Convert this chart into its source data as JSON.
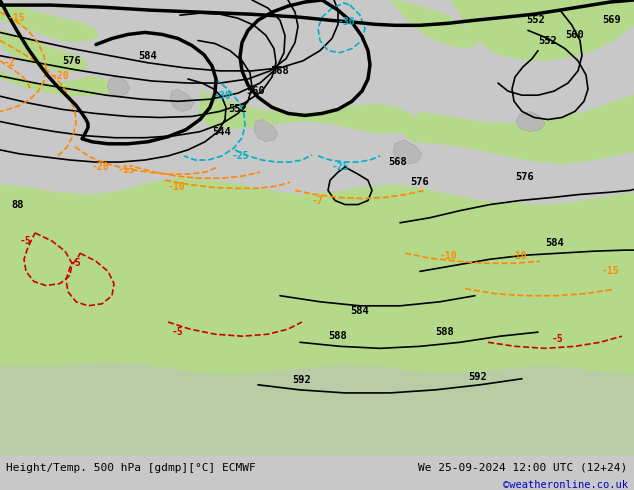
{
  "title_left": "Height/Temp. 500 hPa [gdmp][°C] ECMWF",
  "title_right": "We 25-09-2024 12:00 UTC (12+24)",
  "credit": "©weatheronline.co.uk",
  "bg_color": "#c8c8c8",
  "land_green_color": "#b4d98a",
  "land_gray_color": "#c0c0c0",
  "sea_color": "#d8d8d8",
  "fig_width": 6.34,
  "fig_height": 4.9,
  "dpi": 100
}
